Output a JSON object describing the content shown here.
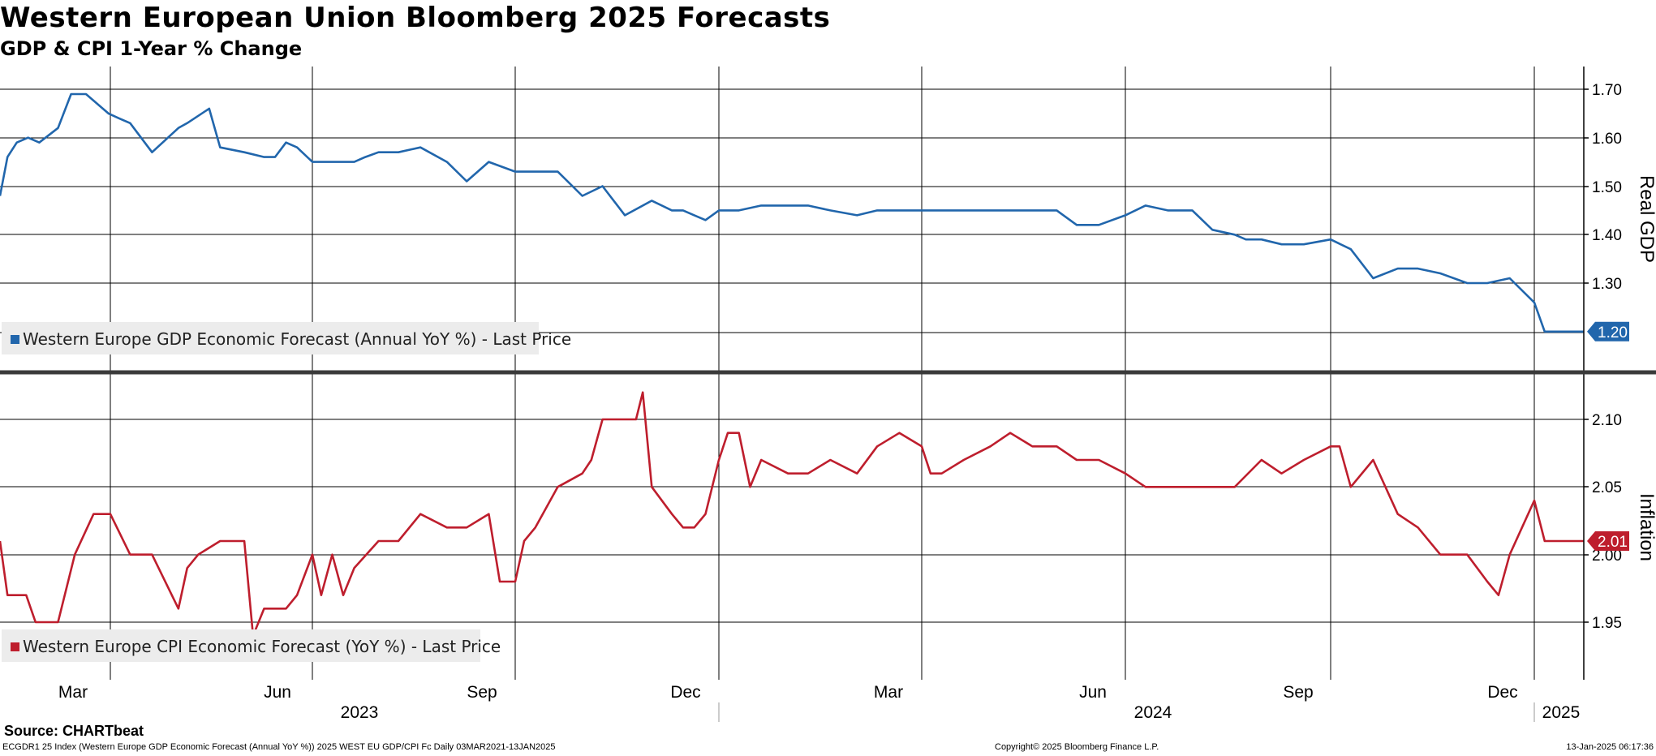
{
  "header": {
    "title": "Western European Union Bloomberg 2025 Forecasts",
    "subtitle": "GDP & CPI 1-Year % Change"
  },
  "footer": {
    "source": "Source: CHARTbeat",
    "left": "ECGDR1 25 Index (Western Europe GDP Economic Forecast (Annual YoY %)) 2025 WEST EU GDP/CPI Fc  Daily 03MAR2021-13JAN2025",
    "center": "Copyright© 2025 Bloomberg Finance L.P.",
    "right": "13-Jan-2025 06:17:36"
  },
  "colors": {
    "gdp": "#2166AC",
    "cpi": "#BE1E2D",
    "grid": "#000000",
    "legend_bg": "#ECECEC"
  },
  "chart_data": [
    {
      "type": "line",
      "ylabel": "Real GDP",
      "ylim": [
        1.12,
        1.73
      ],
      "yticks": [
        "1.70",
        "1.60",
        "1.50",
        "1.40",
        "1.30"
      ],
      "series": [
        {
          "name": "Western Europe GDP Economic Forecast (Annual YoY %) - Last Price",
          "last_price": "1.20",
          "x": [
            "2023-01-01",
            "2023-01-05",
            "2023-01-10",
            "2023-01-16",
            "2023-01-22",
            "2023-02-01",
            "2023-02-08",
            "2023-02-16",
            "2023-02-28",
            "2023-03-05",
            "2023-03-10",
            "2023-03-20",
            "2023-04-01",
            "2023-04-05",
            "2023-04-15",
            "2023-04-20",
            "2023-05-01",
            "2023-05-10",
            "2023-05-15",
            "2023-05-20",
            "2023-05-25",
            "2023-06-01",
            "2023-06-10",
            "2023-06-20",
            "2023-06-25",
            "2023-07-01",
            "2023-07-10",
            "2023-07-20",
            "2023-08-01",
            "2023-08-10",
            "2023-08-20",
            "2023-09-01",
            "2023-09-10",
            "2023-09-20",
            "2023-10-01",
            "2023-10-10",
            "2023-10-20",
            "2023-11-01",
            "2023-11-10",
            "2023-11-15",
            "2023-11-20",
            "2023-11-25",
            "2023-12-01",
            "2023-12-10",
            "2023-12-20",
            "2024-01-01",
            "2024-01-10",
            "2024-01-20",
            "2024-02-01",
            "2024-02-10",
            "2024-02-20",
            "2024-03-01",
            "2024-03-10",
            "2024-03-20",
            "2024-04-01",
            "2024-04-10",
            "2024-04-20",
            "2024-05-01",
            "2024-05-10",
            "2024-05-20",
            "2024-06-01",
            "2024-06-10",
            "2024-06-20",
            "2024-07-01",
            "2024-07-10",
            "2024-07-20",
            "2024-07-25",
            "2024-08-01",
            "2024-08-10",
            "2024-08-20",
            "2024-09-01",
            "2024-09-10",
            "2024-09-20",
            "2024-10-01",
            "2024-10-10",
            "2024-10-20",
            "2024-11-01",
            "2024-11-10",
            "2024-11-20",
            "2024-12-01",
            "2024-12-10",
            "2024-12-20",
            "2025-01-13"
          ],
          "values": [
            1.48,
            1.56,
            1.59,
            1.6,
            1.59,
            1.62,
            1.69,
            1.69,
            1.65,
            1.64,
            1.63,
            1.57,
            1.62,
            1.63,
            1.66,
            1.58,
            1.57,
            1.56,
            1.56,
            1.59,
            1.58,
            1.55,
            1.55,
            1.55,
            1.56,
            1.57,
            1.57,
            1.58,
            1.55,
            1.51,
            1.55,
            1.53,
            1.53,
            1.53,
            1.48,
            1.5,
            1.44,
            1.47,
            1.45,
            1.45,
            1.44,
            1.43,
            1.45,
            1.45,
            1.46,
            1.46,
            1.46,
            1.45,
            1.44,
            1.45,
            1.45,
            1.45,
            1.45,
            1.45,
            1.45,
            1.45,
            1.45,
            1.45,
            1.42,
            1.42,
            1.44,
            1.46,
            1.45,
            1.45,
            1.41,
            1.4,
            1.39,
            1.39,
            1.38,
            1.38,
            1.39,
            1.37,
            1.31,
            1.33,
            1.33,
            1.32,
            1.3,
            1.3,
            1.31,
            1.26,
            1.2,
            1.2,
            1.2
          ]
        }
      ]
    },
    {
      "type": "line",
      "ylabel": "Inflation",
      "ylim": [
        1.91,
        2.13
      ],
      "yticks": [
        "2.10",
        "2.05",
        "2.00",
        "1.95"
      ],
      "xlabel_months": [
        "Mar",
        "Jun",
        "Sep",
        "Dec",
        "Mar",
        "Jun",
        "Sep",
        "Dec"
      ],
      "xlabel_years": [
        "2023",
        "2024",
        "2025"
      ],
      "series": [
        {
          "name": "Western Europe CPI Economic Forecast (YoY %) - Last Price",
          "last_price": "2.01",
          "x": [
            "2023-01-01",
            "2023-01-05",
            "2023-01-15",
            "2023-01-20",
            "2023-02-01",
            "2023-02-10",
            "2023-02-20",
            "2023-03-01",
            "2023-03-10",
            "2023-03-20",
            "2023-04-01",
            "2023-04-05",
            "2023-04-10",
            "2023-04-20",
            "2023-05-01",
            "2023-05-05",
            "2023-05-10",
            "2023-05-20",
            "2023-05-25",
            "2023-06-01",
            "2023-06-05",
            "2023-06-10",
            "2023-06-15",
            "2023-06-20",
            "2023-07-01",
            "2023-07-10",
            "2023-07-20",
            "2023-08-01",
            "2023-08-10",
            "2023-08-20",
            "2023-08-25",
            "2023-09-01",
            "2023-09-05",
            "2023-09-10",
            "2023-09-20",
            "2023-10-01",
            "2023-10-05",
            "2023-10-10",
            "2023-10-15",
            "2023-10-25",
            "2023-10-28",
            "2023-11-01",
            "2023-11-10",
            "2023-11-15",
            "2023-11-20",
            "2023-11-25",
            "2023-12-01",
            "2023-12-05",
            "2023-12-10",
            "2023-12-15",
            "2023-12-20",
            "2024-01-01",
            "2024-01-10",
            "2024-01-20",
            "2024-02-01",
            "2024-02-10",
            "2024-02-20",
            "2024-03-01",
            "2024-03-05",
            "2024-03-10",
            "2024-03-20",
            "2024-04-01",
            "2024-04-10",
            "2024-04-20",
            "2024-05-01",
            "2024-05-10",
            "2024-05-20",
            "2024-06-01",
            "2024-06-10",
            "2024-06-20",
            "2024-07-01",
            "2024-07-10",
            "2024-07-20",
            "2024-08-01",
            "2024-08-10",
            "2024-08-20",
            "2024-09-01",
            "2024-09-05",
            "2024-09-10",
            "2024-09-20",
            "2024-10-01",
            "2024-10-10",
            "2024-10-20",
            "2024-11-01",
            "2024-11-10",
            "2024-11-15",
            "2024-11-20",
            "2024-12-01",
            "2024-12-10",
            "2024-12-20",
            "2025-01-13"
          ],
          "values": [
            2.01,
            1.97,
            1.97,
            1.95,
            1.95,
            2.0,
            2.03,
            2.03,
            2.0,
            2.0,
            1.96,
            1.99,
            2.0,
            2.01,
            2.01,
            1.94,
            1.96,
            1.96,
            1.97,
            2.0,
            1.97,
            2.0,
            1.97,
            1.99,
            2.01,
            2.01,
            2.03,
            2.02,
            2.02,
            2.03,
            1.98,
            1.98,
            2.01,
            2.02,
            2.05,
            2.06,
            2.07,
            2.1,
            2.1,
            2.1,
            2.12,
            2.05,
            2.03,
            2.02,
            2.02,
            2.03,
            2.07,
            2.09,
            2.09,
            2.05,
            2.07,
            2.06,
            2.06,
            2.07,
            2.06,
            2.08,
            2.09,
            2.08,
            2.06,
            2.06,
            2.07,
            2.08,
            2.09,
            2.08,
            2.08,
            2.07,
            2.07,
            2.06,
            2.05,
            2.05,
            2.05,
            2.05,
            2.05,
            2.07,
            2.06,
            2.07,
            2.08,
            2.08,
            2.05,
            2.07,
            2.03,
            2.02,
            2.0,
            2.0,
            1.98,
            1.97,
            2.0,
            2.04,
            2.01,
            2.01,
            2.01
          ]
        }
      ]
    }
  ]
}
